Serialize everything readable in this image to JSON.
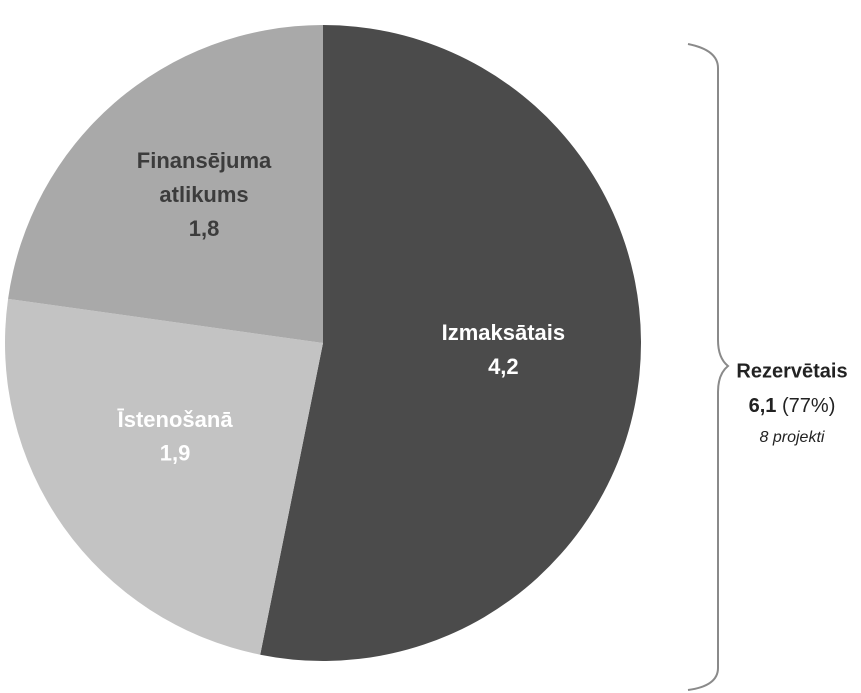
{
  "chart_data": {
    "type": "pie",
    "categories": [
      "Izmaksātais",
      "Īstenošanā",
      "Finansējuma atlikums"
    ],
    "values": [
      4.2,
      1.9,
      1.8
    ],
    "value_labels": [
      "4,2",
      "1,9",
      "1,8"
    ],
    "colors": [
      "#4b4b4b",
      "#c3c3c3",
      "#a9a9a9"
    ],
    "label_colors": [
      "#ffffff",
      "#ffffff",
      "#3c3c3c"
    ],
    "annotation": {
      "title": "Rezervētais",
      "value": "6,1",
      "share": "(77%)",
      "note": "8 projekti"
    }
  }
}
